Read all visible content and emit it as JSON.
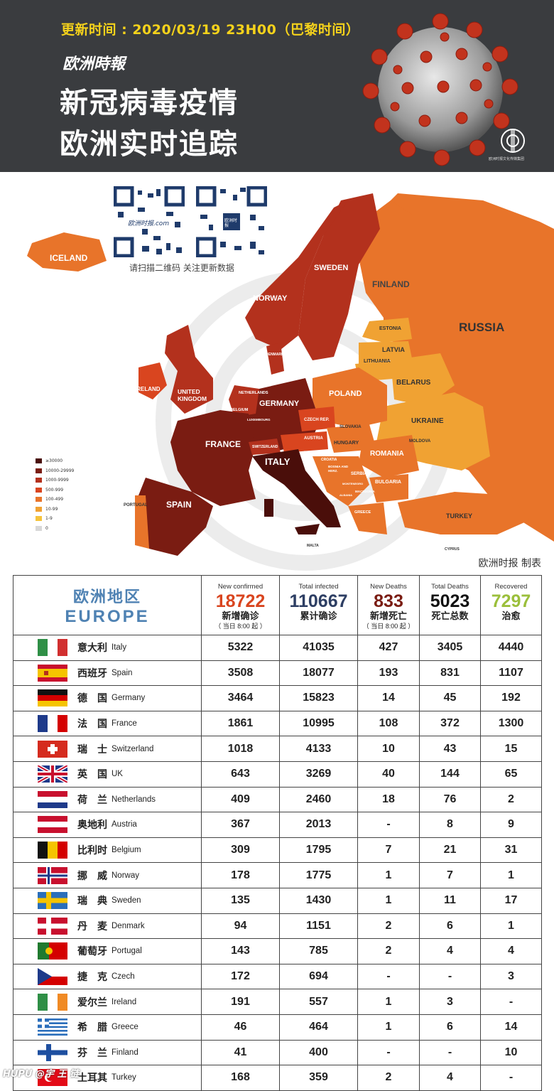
{
  "header": {
    "update_time": "更新时间 : 2020/03/19  23H00（巴黎时间）",
    "brand": "欧洲時報",
    "title_line1": "新冠病毒疫情",
    "title_line2": "欧洲实时追踪",
    "logo_text": "欧洲时报文化传媒集团"
  },
  "map": {
    "qr_caption": "请扫描二维码  关注更新数据",
    "qr1_text": "欧洲时报.com",
    "qr2_text": "欧洲时报",
    "source": "欧洲时报 制表",
    "countries": {
      "iceland": "ICELAND",
      "sweden": "SWEDEN",
      "norway": "NORWAY",
      "finland": "FINLAND",
      "russia": "RUSSIA",
      "estonia": "ESTONIA",
      "latvia": "LATVIA",
      "lithuania": "LITHUANIA",
      "belarus": "BELARUS",
      "poland": "POLAND",
      "ukraine": "UKRAINE",
      "germany": "GERMANY",
      "denmark": "DENMARK",
      "netherlands": "NETHERLANDS",
      "belgium": "BELGIUM",
      "luxembourg": "LUXEMBOURG",
      "ireland": "IRELAND",
      "uk": "UNITED KINGDOM",
      "france": "FRANCE",
      "switzerland": "SWITZERLAND",
      "czech": "CZECH REP.",
      "austria": "AUSTRIA",
      "slovakia": "SLOVAKIA",
      "hungary": "HUNGARY",
      "moldova": "MOLDOVA",
      "romania": "ROMANIA",
      "italy": "ITALY",
      "spain": "SPAIN",
      "portugal": "PORTUGAL",
      "croatia": "CROATIA",
      "bosnia": "BOSNIA AND HERZ.",
      "serbia": "SERBIA",
      "montenegro": "MONTENEGRO",
      "albania": "ALBANIA",
      "macedonia": "MACEDONIA",
      "bulgaria": "BULGARIA",
      "greece": "GREECE",
      "turkey": "TURKEY",
      "malta": "MALTA",
      "cyprus": "CYPRUS",
      "slovenia": "SLOVENIA"
    },
    "legend": [
      {
        "label": "≥30000",
        "color": "#4a0e0a"
      },
      {
        "label": "10000-29999",
        "color": "#7a1c12"
      },
      {
        "label": "1000-9999",
        "color": "#b3311d"
      },
      {
        "label": "500-999",
        "color": "#d9451f"
      },
      {
        "label": "100-499",
        "color": "#e8742a"
      },
      {
        "label": "10-99",
        "color": "#f0a233"
      },
      {
        "label": "1-9",
        "color": "#f6c43c"
      },
      {
        "label": "0",
        "color": "#d8d8d8"
      }
    ]
  },
  "table": {
    "region_zh": "欧洲地区",
    "region_en": "EUROPE",
    "columns": [
      {
        "en": "New confirmed",
        "total": "18722",
        "zh": "新增确诊",
        "note": "（ 当日 8:00 起 ）",
        "color": "#d9451f"
      },
      {
        "en": "Total infected",
        "total": "110667",
        "zh": "累计确诊",
        "note": "",
        "color": "#2d3e63"
      },
      {
        "en": "New Deaths",
        "total": "833",
        "zh": "新增死亡",
        "note": "（ 当日 8:00 起 ）",
        "color": "#7a1c12"
      },
      {
        "en": "Total Deaths",
        "total": "5023",
        "zh": "死亡总数",
        "note": "",
        "color": "#111111"
      },
      {
        "en": "Recovered",
        "total": "7297",
        "zh": "治愈",
        "note": "",
        "color": "#9bbf3b"
      }
    ],
    "rows": [
      {
        "zh": "意大利",
        "en": "Italy",
        "flag": "italy",
        "values": [
          "5322",
          "41035",
          "427",
          "3405",
          "4440"
        ]
      },
      {
        "zh": "西班牙",
        "en": "Spain",
        "flag": "spain",
        "values": [
          "3508",
          "18077",
          "193",
          "831",
          "1107"
        ]
      },
      {
        "zh": "德　国",
        "en": "Germany",
        "flag": "germany",
        "values": [
          "3464",
          "15823",
          "14",
          "45",
          "192"
        ]
      },
      {
        "zh": "法　国",
        "en": "France",
        "flag": "france",
        "values": [
          "1861",
          "10995",
          "108",
          "372",
          "1300"
        ]
      },
      {
        "zh": "瑞　士",
        "en": "Switzerland",
        "flag": "switzerland",
        "values": [
          "1018",
          "4133",
          "10",
          "43",
          "15"
        ]
      },
      {
        "zh": "英　国",
        "en": "UK",
        "flag": "uk",
        "values": [
          "643",
          "3269",
          "40",
          "144",
          "65"
        ]
      },
      {
        "zh": "荷　兰",
        "en": "Netherlands",
        "flag": "netherlands",
        "values": [
          "409",
          "2460",
          "18",
          "76",
          "2"
        ]
      },
      {
        "zh": "奥地利",
        "en": "Austria",
        "flag": "austria",
        "values": [
          "367",
          "2013",
          "-",
          "8",
          "9"
        ]
      },
      {
        "zh": "比利时",
        "en": "Belgium",
        "flag": "belgium",
        "values": [
          "309",
          "1795",
          "7",
          "21",
          "31"
        ]
      },
      {
        "zh": "挪　威",
        "en": "Norway",
        "flag": "norway",
        "values": [
          "178",
          "1775",
          "1",
          "7",
          "1"
        ]
      },
      {
        "zh": "瑞　典",
        "en": "Sweden",
        "flag": "sweden",
        "values": [
          "135",
          "1430",
          "1",
          "11",
          "17"
        ]
      },
      {
        "zh": "丹　麦",
        "en": "Denmark",
        "flag": "denmark",
        "values": [
          "94",
          "1151",
          "2",
          "6",
          "1"
        ]
      },
      {
        "zh": "葡萄牙",
        "en": "Portugal",
        "flag": "portugal",
        "values": [
          "143",
          "785",
          "2",
          "4",
          "4"
        ]
      },
      {
        "zh": "捷　克",
        "en": "Czech",
        "flag": "czech",
        "values": [
          "172",
          "694",
          "-",
          "-",
          "3"
        ]
      },
      {
        "zh": "爱尔兰",
        "en": "Ireland",
        "flag": "ireland",
        "values": [
          "191",
          "557",
          "1",
          "3",
          "-"
        ]
      },
      {
        "zh": "希　腊",
        "en": "Greece",
        "flag": "greece",
        "values": [
          "46",
          "464",
          "1",
          "6",
          "14"
        ]
      },
      {
        "zh": "芬　兰",
        "en": "Finland",
        "flag": "finland",
        "values": [
          "41",
          "400",
          "-",
          "-",
          "10"
        ]
      },
      {
        "zh": "土耳其",
        "en": "Turkey",
        "flag": "turkey",
        "values": [
          "168",
          "359",
          "2",
          "4",
          "-"
        ]
      }
    ]
  },
  "footer": {
    "watermark": "HUPU @宇 王 链"
  }
}
